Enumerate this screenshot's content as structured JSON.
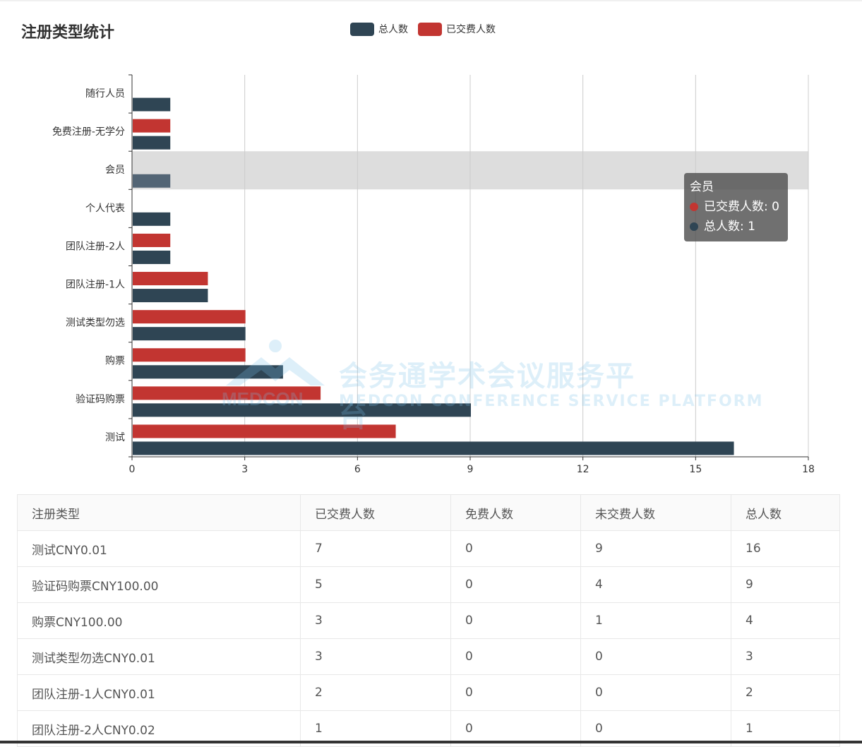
{
  "page": {
    "title": "注册类型统计"
  },
  "legend": [
    {
      "label": "总人数",
      "color": "#2f4554"
    },
    {
      "label": "已交费人数",
      "color": "#c23531"
    }
  ],
  "tooltip": {
    "category": "会员",
    "rows": [
      {
        "label": "已交费人数: 0",
        "color": "#c23531"
      },
      {
        "label": "总人数: 1",
        "color": "#2f4554"
      }
    ]
  },
  "watermark": {
    "cn": "会务通学术会议服务平台",
    "en": "MEDCON CONFERENCE SERVICE PLATFORM"
  },
  "chart_data": {
    "type": "bar",
    "orientation": "horizontal",
    "categories": [
      "随行人员",
      "免费注册-无学分",
      "会员",
      "个人代表",
      "团队注册-2人",
      "团队注册-1人",
      "测试类型勿选",
      "购票",
      "验证码购票",
      "测试"
    ],
    "series": [
      {
        "name": "已交费人数",
        "color": "#c23531",
        "values": [
          0,
          1,
          0,
          0,
          1,
          2,
          3,
          3,
          5,
          7
        ]
      },
      {
        "name": "总人数",
        "color": "#2f4554",
        "values": [
          1,
          1,
          1,
          1,
          1,
          2,
          3,
          4,
          9,
          16
        ]
      }
    ],
    "xlim": [
      0,
      18
    ],
    "xticks": [
      0,
      3,
      6,
      9,
      12,
      15,
      18
    ],
    "highlighted_category": "会员",
    "grid": true,
    "legend_position": "top-center"
  },
  "table": {
    "headers": [
      "注册类型",
      "已交费人数",
      "免费人数",
      "未交费人数",
      "总人数"
    ],
    "rows": [
      [
        "测试CNY0.01",
        "7",
        "0",
        "9",
        "16"
      ],
      [
        "验证码购票CNY100.00",
        "5",
        "0",
        "4",
        "9"
      ],
      [
        "购票CNY100.00",
        "3",
        "0",
        "1",
        "4"
      ],
      [
        "测试类型勿选CNY0.01",
        "3",
        "0",
        "0",
        "3"
      ],
      [
        "团队注册-1人CNY0.01",
        "2",
        "0",
        "0",
        "2"
      ],
      [
        "团队注册-2人CNY0.02",
        "1",
        "0",
        "0",
        "1"
      ]
    ]
  }
}
